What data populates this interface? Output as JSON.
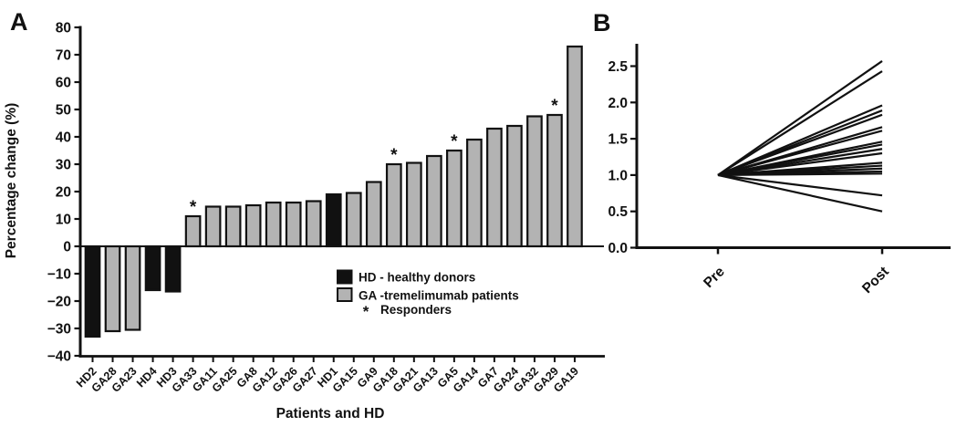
{
  "figure": {
    "panel_a": {
      "label": "A",
      "ylabel": "Percentage change (%)",
      "xlabel": "Patients and HD",
      "legend": [
        {
          "swatch": "hd",
          "label": "HD - healthy donors"
        },
        {
          "swatch": "ga",
          "label": "GA -tremelimumab patients"
        },
        {
          "swatch": "asterisk",
          "symbol": "*",
          "label": "Responders"
        }
      ]
    },
    "panel_b": {
      "label": "B"
    },
    "colors": {
      "hd": "#111111",
      "ga": "#b3b3b3",
      "axis": "#111111",
      "line": "#111111"
    }
  },
  "chart_data": [
    {
      "id": "panel_a",
      "type": "bar",
      "title": "",
      "xlabel": "Patients and HD",
      "ylabel": "Percentage change (%)",
      "ylim": [
        -40,
        80
      ],
      "yticks": [
        80,
        70,
        60,
        50,
        40,
        30,
        20,
        10,
        0,
        -10,
        -20,
        -30,
        -40
      ],
      "grid": false,
      "legend_position": "inside-bottom-center",
      "categories": [
        "HD2",
        "GA28",
        "GA23",
        "HD4",
        "HD3",
        "GA33",
        "GA11",
        "GA25",
        "GA8",
        "GA12",
        "GA26",
        "GA27",
        "HD1",
        "GA15",
        "GA9",
        "GA18",
        "GA21",
        "GA13",
        "GA5",
        "GA14",
        "GA7",
        "GA24",
        "GA32",
        "GA29",
        "GA19"
      ],
      "values": [
        -33,
        -31,
        -30.5,
        -16,
        -16.5,
        11,
        14.5,
        14.5,
        15,
        16,
        16,
        16.5,
        19,
        19.5,
        23.5,
        30,
        30.5,
        33,
        35,
        39,
        43,
        44,
        47.5,
        48,
        73
      ],
      "groups": [
        "HD",
        "GA",
        "GA",
        "HD",
        "HD",
        "GA",
        "GA",
        "GA",
        "GA",
        "GA",
        "GA",
        "GA",
        "HD",
        "GA",
        "GA",
        "GA",
        "GA",
        "GA",
        "GA",
        "GA",
        "GA",
        "GA",
        "GA",
        "GA",
        "GA"
      ],
      "responders": [
        "GA33",
        "GA18",
        "GA5",
        "GA29"
      ]
    },
    {
      "id": "panel_b",
      "type": "line",
      "title": "",
      "categories": [
        "Pre",
        "Post"
      ],
      "ylim": [
        0,
        2.8
      ],
      "yticks": [
        0,
        0.5,
        1,
        1.5,
        2,
        2.5
      ],
      "grid": false,
      "series": [
        {
          "pre": 1.0,
          "post": 2.57
        },
        {
          "pre": 1.0,
          "post": 2.43
        },
        {
          "pre": 1.0,
          "post": 1.96
        },
        {
          "pre": 1.0,
          "post": 1.89
        },
        {
          "pre": 1.0,
          "post": 1.83
        },
        {
          "pre": 1.0,
          "post": 1.66
        },
        {
          "pre": 1.0,
          "post": 1.61
        },
        {
          "pre": 1.0,
          "post": 1.46
        },
        {
          "pre": 1.0,
          "post": 1.42
        },
        {
          "pre": 1.0,
          "post": 1.36
        },
        {
          "pre": 1.0,
          "post": 1.3
        },
        {
          "pre": 1.0,
          "post": 1.17
        },
        {
          "pre": 1.0,
          "post": 1.13
        },
        {
          "pre": 1.0,
          "post": 1.09
        },
        {
          "pre": 1.0,
          "post": 1.05
        },
        {
          "pre": 1.0,
          "post": 1.02
        },
        {
          "pre": 1.0,
          "post": 0.72
        },
        {
          "pre": 1.0,
          "post": 0.5
        }
      ]
    }
  ]
}
